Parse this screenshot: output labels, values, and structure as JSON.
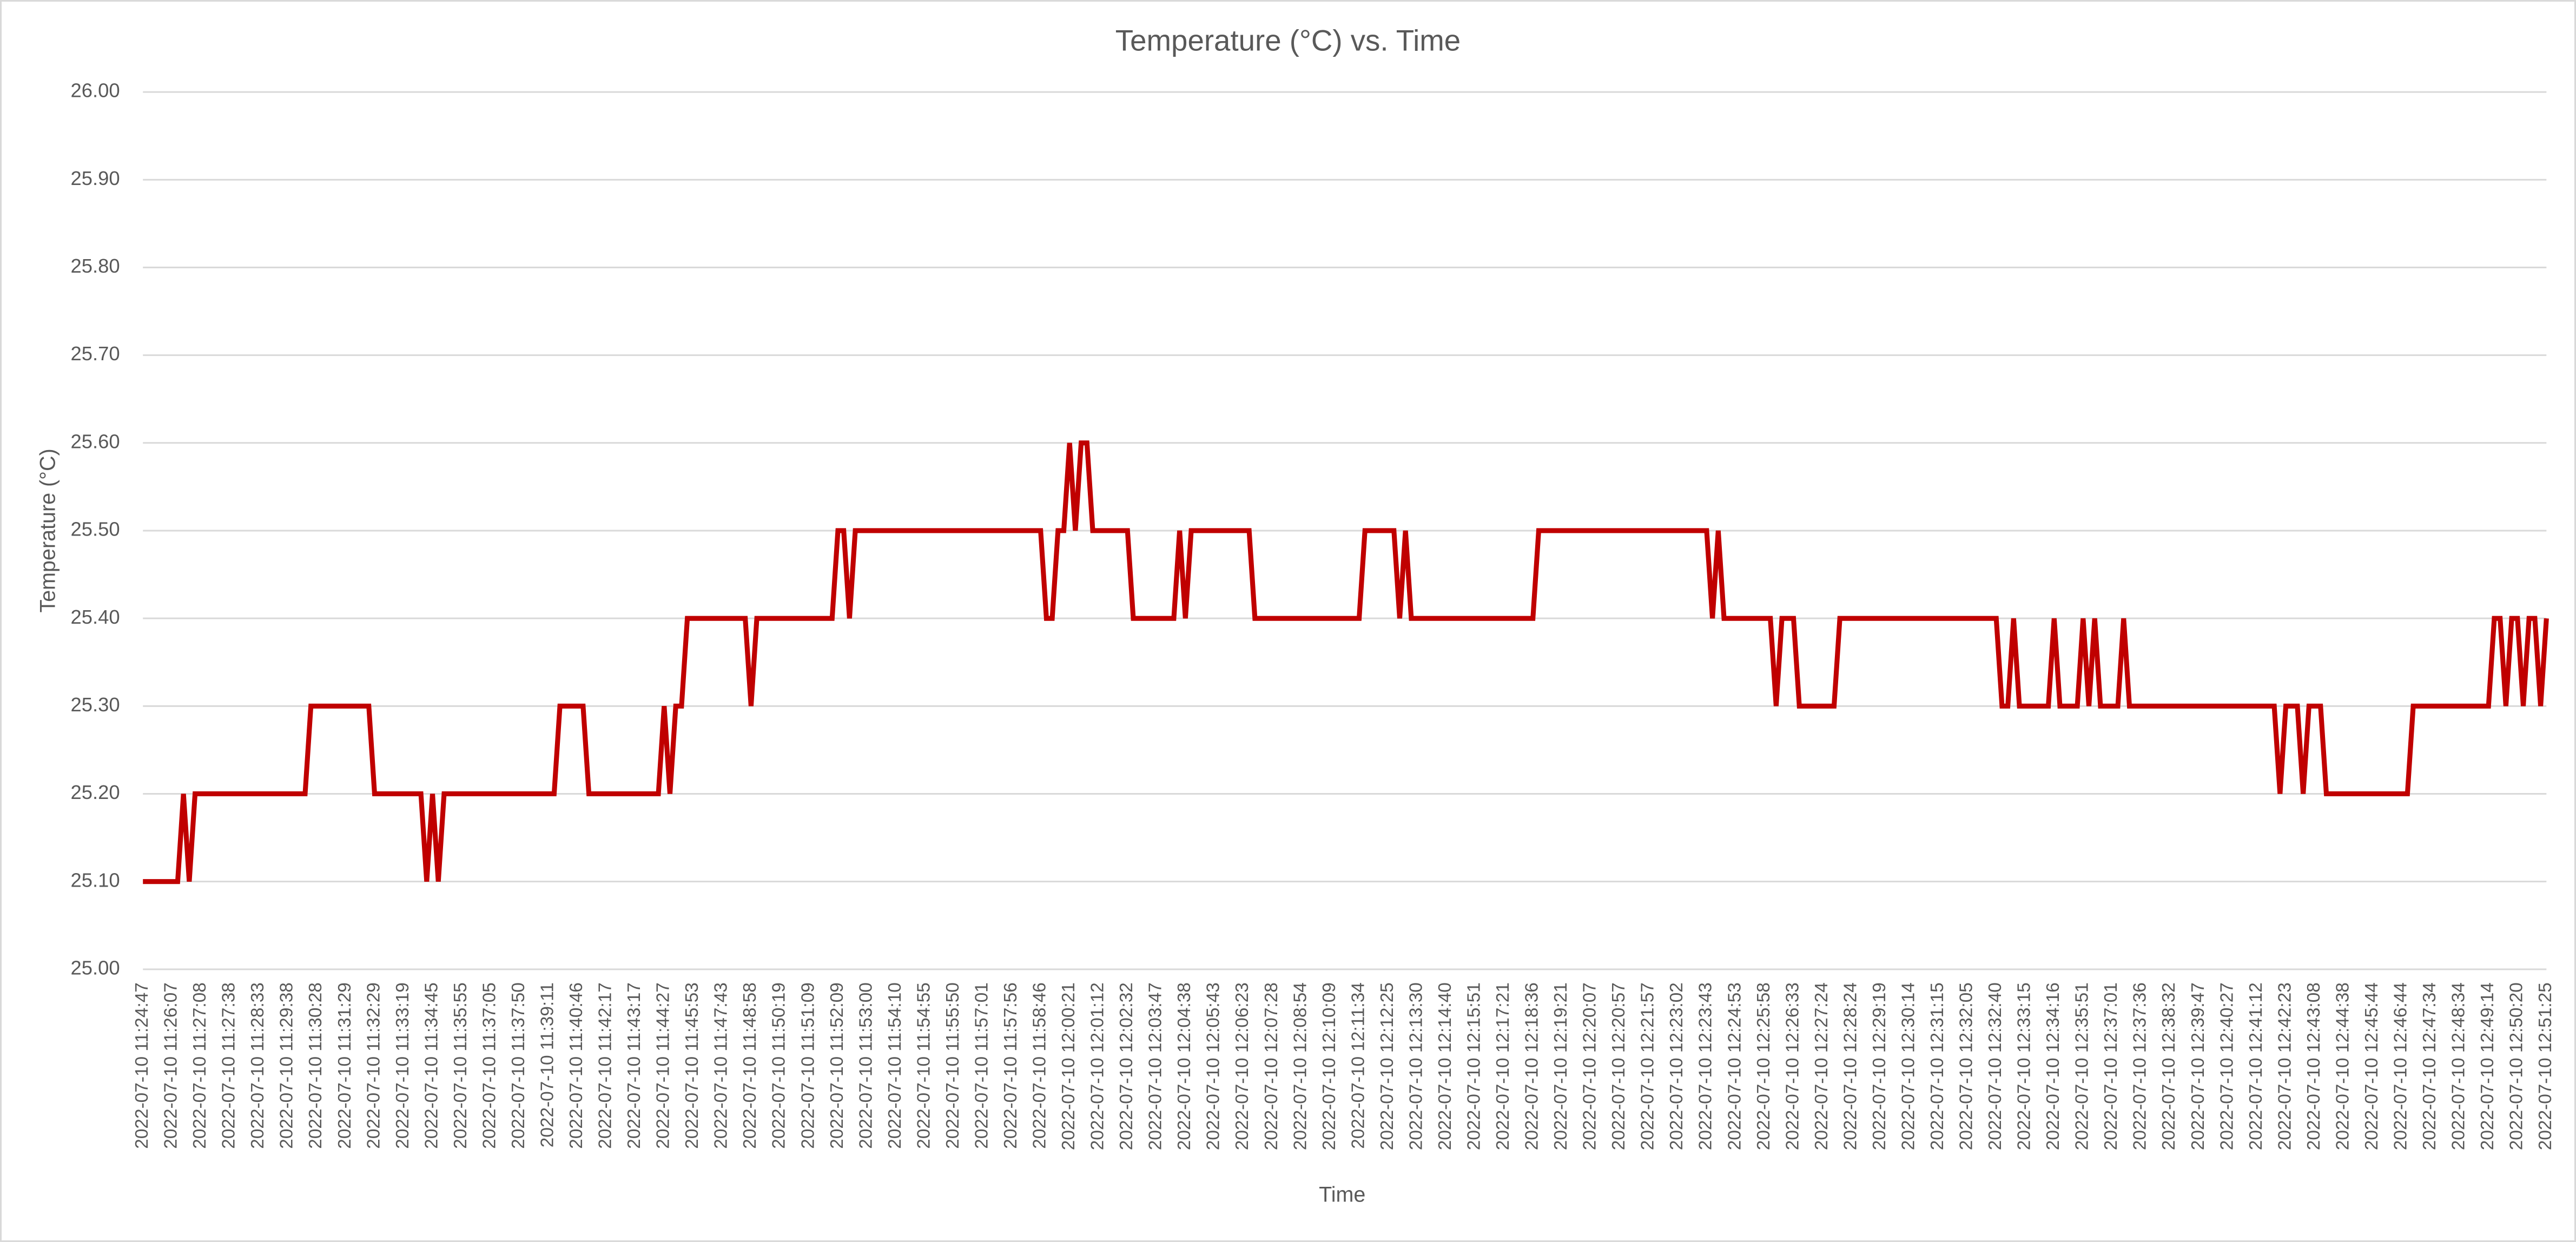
{
  "chart_data": {
    "type": "line",
    "title": "Temperature (°C) vs. Time",
    "x_label": "Time",
    "y_label": "Temperature (°C)",
    "color": "#c00000",
    "grid": true,
    "ylim": [
      25,
      26
    ],
    "yticks": [
      {
        "value": 25,
        "label": "25.00"
      },
      {
        "value": 25.1,
        "label": "25.10"
      },
      {
        "value": 25.2,
        "label": "25.20"
      },
      {
        "value": 25.3,
        "label": "25.30"
      },
      {
        "value": 25.4,
        "label": "25.40"
      },
      {
        "value": 25.5,
        "label": "25.50"
      },
      {
        "value": 25.6,
        "label": "25.60"
      },
      {
        "value": 25.7,
        "label": "25.70"
      },
      {
        "value": 25.8,
        "label": "25.80"
      },
      {
        "value": 25.9,
        "label": "25.90"
      },
      {
        "value": 26,
        "label": "26.00"
      }
    ],
    "categories": [
      "2022-07-10 11:24:47",
      null,
      null,
      null,
      null,
      "2022-07-10 11:26:07",
      null,
      null,
      null,
      null,
      "2022-07-10 11:27:08",
      null,
      null,
      null,
      null,
      "2022-07-10 11:27:38",
      null,
      null,
      null,
      null,
      "2022-07-10 11:28:33",
      null,
      null,
      null,
      null,
      "2022-07-10 11:29:38",
      null,
      null,
      null,
      null,
      "2022-07-10 11:30:28",
      null,
      null,
      null,
      null,
      "2022-07-10 11:31:29",
      null,
      null,
      null,
      null,
      "2022-07-10 11:32:29",
      null,
      null,
      null,
      null,
      "2022-07-10 11:33:19",
      null,
      null,
      null,
      null,
      "2022-07-10 11:34:45",
      null,
      null,
      null,
      null,
      "2022-07-10 11:35:55",
      null,
      null,
      null,
      null,
      "2022-07-10 11:37:05",
      null,
      null,
      null,
      null,
      "2022-07-10 11:37:50",
      null,
      null,
      null,
      null,
      "2022-07-10 11:39:11",
      null,
      null,
      null,
      null,
      "2022-07-10 11:40:46",
      null,
      null,
      null,
      null,
      "2022-07-10 11:42:17",
      null,
      null,
      null,
      null,
      "2022-07-10 11:43:17",
      null,
      null,
      null,
      null,
      "2022-07-10 11:44:27",
      null,
      null,
      null,
      null,
      "2022-07-10 11:45:53",
      null,
      null,
      null,
      null,
      "2022-07-10 11:47:43",
      null,
      null,
      null,
      null,
      "2022-07-10 11:48:58",
      null,
      null,
      null,
      null,
      "2022-07-10 11:50:19",
      null,
      null,
      null,
      null,
      "2022-07-10 11:51:09",
      null,
      null,
      null,
      null,
      "2022-07-10 11:52:09",
      null,
      null,
      null,
      null,
      "2022-07-10 11:53:00",
      null,
      null,
      null,
      null,
      "2022-07-10 11:54:10",
      null,
      null,
      null,
      null,
      "2022-07-10 11:54:55",
      null,
      null,
      null,
      null,
      "2022-07-10 11:55:50",
      null,
      null,
      null,
      null,
      "2022-07-10 11:57:01",
      null,
      null,
      null,
      null,
      "2022-07-10 11:57:56",
      null,
      null,
      null,
      null,
      "2022-07-10 11:58:46",
      null,
      null,
      null,
      null,
      "2022-07-10 12:00:21",
      null,
      null,
      null,
      null,
      "2022-07-10 12:01:12",
      null,
      null,
      null,
      null,
      "2022-07-10 12:02:32",
      null,
      null,
      null,
      null,
      "2022-07-10 12:03:47",
      null,
      null,
      null,
      null,
      "2022-07-10 12:04:38",
      null,
      null,
      null,
      null,
      "2022-07-10 12:05:43",
      null,
      null,
      null,
      null,
      "2022-07-10 12:06:23",
      null,
      null,
      null,
      null,
      "2022-07-10 12:07:28",
      null,
      null,
      null,
      null,
      "2022-07-10 12:08:54",
      null,
      null,
      null,
      null,
      "2022-07-10 12:10:09",
      null,
      null,
      null,
      null,
      "2022-07-10 12:11:34",
      null,
      null,
      null,
      null,
      "2022-07-10 12:12:25",
      null,
      null,
      null,
      null,
      "2022-07-10 12:13:30",
      null,
      null,
      null,
      null,
      "2022-07-10 12:14:40",
      null,
      null,
      null,
      null,
      "2022-07-10 12:15:51",
      null,
      null,
      null,
      null,
      "2022-07-10 12:17:21",
      null,
      null,
      null,
      null,
      "2022-07-10 12:18:36",
      null,
      null,
      null,
      null,
      "2022-07-10 12:19:21",
      null,
      null,
      null,
      null,
      "2022-07-10 12:20:07",
      null,
      null,
      null,
      null,
      "2022-07-10 12:20:57",
      null,
      null,
      null,
      null,
      "2022-07-10 12:21:57",
      null,
      null,
      null,
      null,
      "2022-07-10 12:23:02",
      null,
      null,
      null,
      null,
      "2022-07-10 12:23:43",
      null,
      null,
      null,
      null,
      "2022-07-10 12:24:53",
      null,
      null,
      null,
      null,
      "2022-07-10 12:25:58",
      null,
      null,
      null,
      null,
      "2022-07-10 12:26:33",
      null,
      null,
      null,
      null,
      "2022-07-10 12:27:24",
      null,
      null,
      null,
      null,
      "2022-07-10 12:28:24",
      null,
      null,
      null,
      null,
      "2022-07-10 12:29:19",
      null,
      null,
      null,
      null,
      "2022-07-10 12:30:14",
      null,
      null,
      null,
      null,
      "2022-07-10 12:31:15",
      null,
      null,
      null,
      null,
      "2022-07-10 12:32:05",
      null,
      null,
      null,
      null,
      "2022-07-10 12:32:40",
      null,
      null,
      null,
      null,
      "2022-07-10 12:33:15",
      null,
      null,
      null,
      null,
      "2022-07-10 12:34:16",
      null,
      null,
      null,
      null,
      "2022-07-10 12:35:51",
      null,
      null,
      null,
      null,
      "2022-07-10 12:37:01",
      null,
      null,
      null,
      null,
      "2022-07-10 12:37:36",
      null,
      null,
      null,
      null,
      "2022-07-10 12:38:32",
      null,
      null,
      null,
      null,
      "2022-07-10 12:39:47",
      null,
      null,
      null,
      null,
      "2022-07-10 12:40:27",
      null,
      null,
      null,
      null,
      "2022-07-10 12:41:12",
      null,
      null,
      null,
      null,
      "2022-07-10 12:42:23",
      null,
      null,
      null,
      null,
      "2022-07-10 12:43:08",
      null,
      null,
      null,
      null,
      "2022-07-10 12:44:38",
      null,
      null,
      null,
      null,
      "2022-07-10 12:45:44",
      null,
      null,
      null,
      null,
      "2022-07-10 12:46:44",
      null,
      null,
      null,
      null,
      "2022-07-10 12:47:34",
      null,
      null,
      null,
      null,
      "2022-07-10 12:48:34",
      null,
      null,
      null,
      null,
      "2022-07-10 12:49:14",
      null,
      null,
      null,
      null,
      "2022-07-10 12:50:20",
      null,
      null,
      null,
      null,
      "2022-07-10 12:51:25"
    ],
    "values": [
      25.1,
      25.1,
      25.1,
      25.1,
      25.1,
      25.1,
      25.1,
      25.2,
      25.1,
      25.2,
      25.2,
      25.2,
      25.2,
      25.2,
      25.2,
      25.2,
      25.2,
      25.2,
      25.2,
      25.2,
      25.2,
      25.2,
      25.2,
      25.2,
      25.2,
      25.2,
      25.2,
      25.2,
      25.2,
      25.3,
      25.3,
      25.3,
      25.3,
      25.3,
      25.3,
      25.3,
      25.3,
      25.3,
      25.3,
      25.3,
      25.2,
      25.2,
      25.2,
      25.2,
      25.2,
      25.2,
      25.2,
      25.2,
      25.2,
      25.1,
      25.2,
      25.1,
      25.2,
      25.2,
      25.2,
      25.2,
      25.2,
      25.2,
      25.2,
      25.2,
      25.2,
      25.2,
      25.2,
      25.2,
      25.2,
      25.2,
      25.2,
      25.2,
      25.2,
      25.2,
      25.2,
      25.2,
      25.3,
      25.3,
      25.3,
      25.3,
      25.3,
      25.2,
      25.2,
      25.2,
      25.2,
      25.2,
      25.2,
      25.2,
      25.2,
      25.2,
      25.2,
      25.2,
      25.2,
      25.2,
      25.3,
      25.2,
      25.3,
      25.3,
      25.4,
      25.4,
      25.4,
      25.4,
      25.4,
      25.4,
      25.4,
      25.4,
      25.4,
      25.4,
      25.4,
      25.3,
      25.4,
      25.4,
      25.4,
      25.4,
      25.4,
      25.4,
      25.4,
      25.4,
      25.4,
      25.4,
      25.4,
      25.4,
      25.4,
      25.4,
      25.5,
      25.5,
      25.4,
      25.5,
      25.5,
      25.5,
      25.5,
      25.5,
      25.5,
      25.5,
      25.5,
      25.5,
      25.5,
      25.5,
      25.5,
      25.5,
      25.5,
      25.5,
      25.5,
      25.5,
      25.5,
      25.5,
      25.5,
      25.5,
      25.5,
      25.5,
      25.5,
      25.5,
      25.5,
      25.5,
      25.5,
      25.5,
      25.5,
      25.5,
      25.5,
      25.5,
      25.4,
      25.4,
      25.5,
      25.5,
      25.6,
      25.5,
      25.6,
      25.6,
      25.5,
      25.5,
      25.5,
      25.5,
      25.5,
      25.5,
      25.5,
      25.4,
      25.4,
      25.4,
      25.4,
      25.4,
      25.4,
      25.4,
      25.4,
      25.5,
      25.4,
      25.5,
      25.5,
      25.5,
      25.5,
      25.5,
      25.5,
      25.5,
      25.5,
      25.5,
      25.5,
      25.5,
      25.4,
      25.4,
      25.4,
      25.4,
      25.4,
      25.4,
      25.4,
      25.4,
      25.4,
      25.4,
      25.4,
      25.4,
      25.4,
      25.4,
      25.4,
      25.4,
      25.4,
      25.4,
      25.4,
      25.5,
      25.5,
      25.5,
      25.5,
      25.5,
      25.5,
      25.4,
      25.5,
      25.4,
      25.4,
      25.4,
      25.4,
      25.4,
      25.4,
      25.4,
      25.4,
      25.4,
      25.4,
      25.4,
      25.4,
      25.4,
      25.4,
      25.4,
      25.4,
      25.4,
      25.4,
      25.4,
      25.4,
      25.4,
      25.4,
      25.5,
      25.5,
      25.5,
      25.5,
      25.5,
      25.5,
      25.5,
      25.5,
      25.5,
      25.5,
      25.5,
      25.5,
      25.5,
      25.5,
      25.5,
      25.5,
      25.5,
      25.5,
      25.5,
      25.5,
      25.5,
      25.5,
      25.5,
      25.5,
      25.5,
      25.5,
      25.5,
      25.5,
      25.5,
      25.5,
      25.4,
      25.5,
      25.4,
      25.4,
      25.4,
      25.4,
      25.4,
      25.4,
      25.4,
      25.4,
      25.4,
      25.3,
      25.4,
      25.4,
      25.4,
      25.3,
      25.3,
      25.3,
      25.3,
      25.3,
      25.3,
      25.3,
      25.4,
      25.4,
      25.4,
      25.4,
      25.4,
      25.4,
      25.4,
      25.4,
      25.4,
      25.4,
      25.4,
      25.4,
      25.4,
      25.4,
      25.4,
      25.4,
      25.4,
      25.4,
      25.4,
      25.4,
      25.4,
      25.4,
      25.4,
      25.4,
      25.4,
      25.4,
      25.4,
      25.4,
      25.3,
      25.3,
      25.4,
      25.3,
      25.3,
      25.3,
      25.3,
      25.3,
      25.3,
      25.4,
      25.3,
      25.3,
      25.3,
      25.3,
      25.4,
      25.3,
      25.4,
      25.3,
      25.3,
      25.3,
      25.3,
      25.4,
      25.3,
      25.3,
      25.3,
      25.3,
      25.3,
      25.3,
      25.3,
      25.3,
      25.3,
      25.3,
      25.3,
      25.3,
      25.3,
      25.3,
      25.3,
      25.3,
      25.3,
      25.3,
      25.3,
      25.3,
      25.3,
      25.3,
      25.3,
      25.3,
      25.3,
      25.3,
      25.2,
      25.3,
      25.3,
      25.3,
      25.2,
      25.3,
      25.3,
      25.3,
      25.2,
      25.2,
      25.2,
      25.2,
      25.2,
      25.2,
      25.2,
      25.2,
      25.2,
      25.2,
      25.2,
      25.2,
      25.2,
      25.2,
      25.2,
      25.3,
      25.3,
      25.3,
      25.3,
      25.3,
      25.3,
      25.3,
      25.3,
      25.3,
      25.3,
      25.3,
      25.3,
      25.3,
      25.3,
      25.4,
      25.4,
      25.3,
      25.4,
      25.4,
      25.3,
      25.4,
      25.4,
      25.3,
      25.4
    ]
  }
}
